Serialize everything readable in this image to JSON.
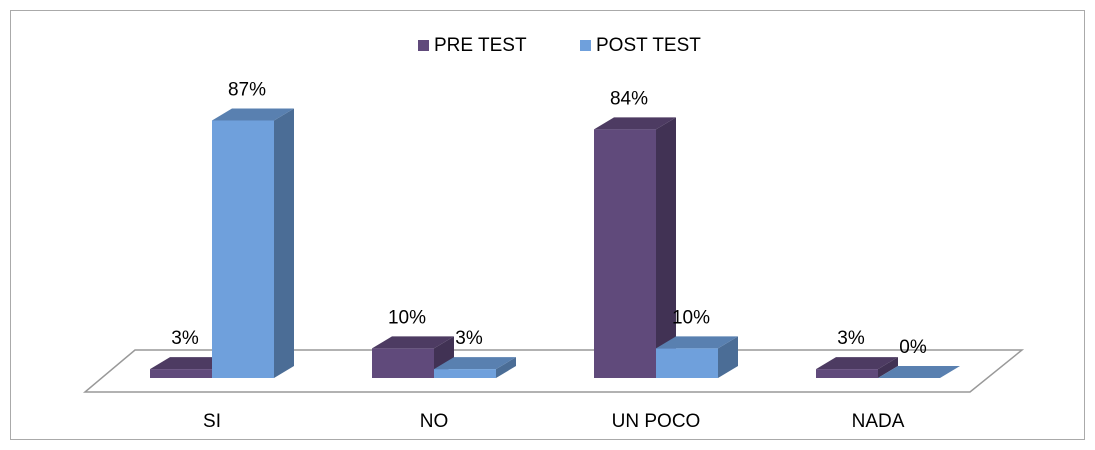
{
  "chart_data": {
    "type": "bar3d",
    "categories": [
      "SI",
      "NO",
      "UN POCO",
      "NADA"
    ],
    "series": [
      {
        "name": "PRE TEST",
        "color": "#604a7b",
        "values": [
          3,
          10,
          84,
          3
        ],
        "value_labels": [
          "3%",
          "10%",
          "84%",
          "3%"
        ]
      },
      {
        "name": "POST TEST",
        "color": "#6fa0dc",
        "values": [
          87,
          3,
          10,
          0
        ],
        "value_labels": [
          "87%",
          "3%",
          "10%",
          "0%"
        ]
      }
    ],
    "legend": "top"
  }
}
